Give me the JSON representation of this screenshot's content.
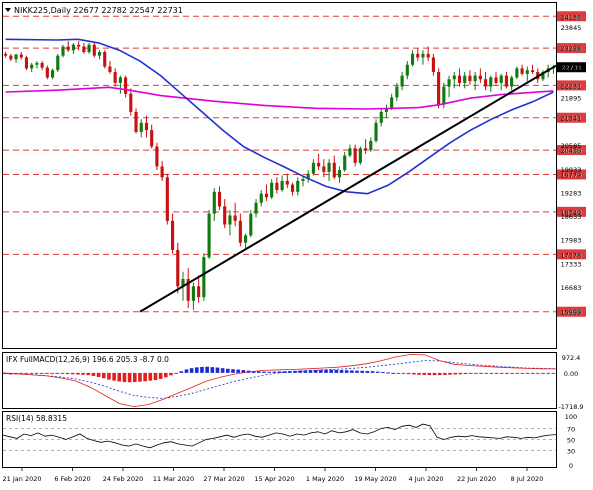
{
  "header": {
    "main_title": "NIKK225,Daily  22677 22782 22547 22731",
    "macd_title": "IFX FullMACD(12,26,9) 196.6 205.3 -8.7 0.0",
    "rsi_title": "RSI(14) 58.8315"
  },
  "colors": {
    "bull": "#107a10",
    "bear": "#c81010",
    "ma50": "#2233cc",
    "ma200": "#dd00dd",
    "level": "#e03a3a",
    "trend": "#000000",
    "macd_pos": "#1a2bd6",
    "macd_neg": "#e02020",
    "macd_line": "#e02020",
    "signal_line": "#1a2bd6",
    "rsi_line": "#000000"
  },
  "chart_data": [
    {
      "type": "candlestick",
      "title": "NIKK225,Daily  22677 22782 22547 22731",
      "ylim": [
        15000,
        24500
      ],
      "y_ticks": [
        "24135",
        "23845",
        "23258",
        "22731",
        "22231",
        "21895",
        "21341",
        "20585",
        "20450",
        "19933",
        "19779",
        "19283",
        "18749",
        "18633",
        "17983",
        "17578",
        "17333",
        "16683",
        "15999"
      ],
      "levels": [
        {
          "value": 24135,
          "label": "24135"
        },
        {
          "value": 23258,
          "label": "23258"
        },
        {
          "value": 22231,
          "label": "22231"
        },
        {
          "value": 21341,
          "label": "21341"
        },
        {
          "value": 20450,
          "label": "20450"
        },
        {
          "value": 19779,
          "label": "19779"
        },
        {
          "value": 18749,
          "label": "18749"
        },
        {
          "value": 17578,
          "label": "17578"
        },
        {
          "value": 15999,
          "label": "15999"
        }
      ],
      "current_price": {
        "value": 22731,
        "label": "22731"
      },
      "x_ticks": [
        "21 Jan 2020",
        "6 Feb 2020",
        "24 Feb 2020",
        "11 Mar 2020",
        "27 Mar 2020",
        "15 Apr 2020",
        "1 May 2020",
        "19 May 2020",
        "4 Jun 2020",
        "22 Jun 2020",
        "8 Jul 2020"
      ],
      "trendline": [
        {
          "x": 26,
          "y": 15999
        },
        {
          "x": 106,
          "y": 22731
        }
      ],
      "ma_50": [
        [
          0,
          23500
        ],
        [
          10,
          23480
        ],
        [
          14,
          23500
        ],
        [
          18,
          23400
        ],
        [
          22,
          23200
        ],
        [
          26,
          22900
        ],
        [
          30,
          22500
        ],
        [
          34,
          22000
        ],
        [
          38,
          21500
        ],
        [
          42,
          21000
        ],
        [
          46,
          20550
        ],
        [
          50,
          20250
        ],
        [
          54,
          19980
        ],
        [
          58,
          19700
        ],
        [
          62,
          19450
        ],
        [
          66,
          19300
        ],
        [
          70,
          19250
        ],
        [
          74,
          19480
        ],
        [
          78,
          19850
        ],
        [
          82,
          20250
        ],
        [
          86,
          20650
        ],
        [
          90,
          21000
        ],
        [
          94,
          21300
        ],
        [
          98,
          21560
        ],
        [
          102,
          21780
        ],
        [
          106,
          22050
        ]
      ],
      "ma_200": [
        [
          0,
          22050
        ],
        [
          10,
          22100
        ],
        [
          20,
          22180
        ],
        [
          24,
          22100
        ],
        [
          30,
          21950
        ],
        [
          40,
          21800
        ],
        [
          50,
          21680
        ],
        [
          60,
          21600
        ],
        [
          70,
          21580
        ],
        [
          80,
          21620
        ],
        [
          84,
          21700
        ],
        [
          90,
          21880
        ],
        [
          96,
          21980
        ],
        [
          106,
          22080
        ]
      ],
      "candles": [
        [
          23100,
          23150,
          23000,
          23050
        ],
        [
          23050,
          23100,
          22900,
          22950
        ],
        [
          22950,
          23100,
          22850,
          23080
        ],
        [
          23080,
          23150,
          22950,
          23000
        ],
        [
          23000,
          23050,
          22650,
          22700
        ],
        [
          22700,
          22850,
          22600,
          22800
        ],
        [
          22800,
          22900,
          22700,
          22850
        ],
        [
          22850,
          22900,
          22650,
          22720
        ],
        [
          22720,
          22780,
          22400,
          22450
        ],
        [
          22450,
          22700,
          22400,
          22650
        ],
        [
          22650,
          23100,
          22600,
          23050
        ],
        [
          23050,
          23350,
          23000,
          23300
        ],
        [
          23300,
          23450,
          23150,
          23200
        ],
        [
          23200,
          23400,
          23100,
          23350
        ],
        [
          23350,
          23450,
          23200,
          23300
        ],
        [
          23300,
          23400,
          23100,
          23150
        ],
        [
          23150,
          23400,
          23100,
          23350
        ],
        [
          23350,
          23400,
          23000,
          23050
        ],
        [
          23050,
          23200,
          22950,
          23150
        ],
        [
          23150,
          23200,
          22700,
          22750
        ],
        [
          22750,
          22900,
          22550,
          22600
        ],
        [
          22600,
          22700,
          22200,
          22300
        ],
        [
          22300,
          22500,
          22000,
          22450
        ],
        [
          22450,
          22500,
          21900,
          22000
        ],
        [
          22000,
          22150,
          21400,
          21500
        ],
        [
          21500,
          21600,
          20900,
          20950
        ],
        [
          20950,
          21300,
          20800,
          21200
        ],
        [
          21200,
          21400,
          20800,
          21000
        ],
        [
          21000,
          21150,
          20500,
          20550
        ],
        [
          20550,
          20650,
          19900,
          20000
        ],
        [
          20000,
          20150,
          19600,
          19700
        ],
        [
          19700,
          19800,
          18400,
          18500
        ],
        [
          18500,
          18700,
          17600,
          17700
        ],
        [
          17700,
          17900,
          16500,
          16700
        ],
        [
          16700,
          17100,
          16300,
          16900
        ],
        [
          16900,
          17200,
          16100,
          16300
        ],
        [
          16300,
          16800,
          16050,
          16700
        ],
        [
          16700,
          17000,
          16250,
          16400
        ],
        [
          16400,
          17600,
          16300,
          17500
        ],
        [
          17500,
          18800,
          17450,
          18700
        ],
        [
          18700,
          19400,
          18500,
          19300
        ],
        [
          19300,
          19450,
          18800,
          18900
        ],
        [
          18900,
          19100,
          18300,
          18400
        ],
        [
          18400,
          18800,
          18100,
          18650
        ],
        [
          18650,
          19000,
          18350,
          18500
        ],
        [
          18500,
          18700,
          17800,
          17900
        ],
        [
          17900,
          18150,
          17750,
          18100
        ],
        [
          18100,
          18800,
          18050,
          18700
        ],
        [
          18700,
          19100,
          18600,
          19000
        ],
        [
          19000,
          19350,
          18900,
          19250
        ],
        [
          19250,
          19500,
          19050,
          19150
        ],
        [
          19150,
          19650,
          19100,
          19550
        ],
        [
          19550,
          19700,
          19250,
          19350
        ],
        [
          19350,
          19750,
          19300,
          19600
        ],
        [
          19600,
          19800,
          19400,
          19500
        ],
        [
          19500,
          19550,
          19200,
          19300
        ],
        [
          19300,
          19700,
          19200,
          19600
        ],
        [
          19600,
          19750,
          19450,
          19650
        ],
        [
          19650,
          19900,
          19550,
          19800
        ],
        [
          19800,
          20200,
          19750,
          20100
        ],
        [
          20100,
          20350,
          19900,
          20000
        ],
        [
          20000,
          20200,
          19700,
          19850
        ],
        [
          19850,
          20200,
          19600,
          20100
        ],
        [
          20100,
          20300,
          19650,
          19700
        ],
        [
          19700,
          20000,
          19550,
          19900
        ],
        [
          19900,
          20400,
          19850,
          20300
        ],
        [
          20300,
          20600,
          20250,
          20500
        ],
        [
          20500,
          20600,
          20000,
          20100
        ],
        [
          20100,
          20550,
          20050,
          20500
        ],
        [
          20500,
          20750,
          20350,
          20450
        ],
        [
          20450,
          20800,
          20400,
          20700
        ],
        [
          20700,
          21300,
          20650,
          21200
        ],
        [
          21200,
          21600,
          21100,
          21500
        ],
        [
          21500,
          21700,
          21350,
          21600
        ],
        [
          21600,
          22000,
          21550,
          21900
        ],
        [
          21900,
          22300,
          21800,
          22200
        ],
        [
          22200,
          22600,
          22100,
          22500
        ],
        [
          22500,
          22900,
          22400,
          22800
        ],
        [
          22800,
          23200,
          22750,
          23100
        ],
        [
          23100,
          23250,
          22900,
          23000
        ],
        [
          23000,
          23200,
          22800,
          23100
        ],
        [
          23100,
          23300,
          22900,
          23000
        ],
        [
          23000,
          23100,
          22500,
          22600
        ],
        [
          22600,
          22700,
          21600,
          21700
        ],
        [
          21700,
          22300,
          21600,
          22200
        ],
        [
          22200,
          22500,
          21900,
          22400
        ],
        [
          22400,
          22600,
          22150,
          22500
        ],
        [
          22500,
          22700,
          22200,
          22300
        ],
        [
          22300,
          22600,
          22150,
          22500
        ],
        [
          22500,
          22650,
          22250,
          22350
        ],
        [
          22350,
          22600,
          22100,
          22500
        ],
        [
          22500,
          22700,
          22300,
          22400
        ],
        [
          22400,
          22600,
          22100,
          22200
        ],
        [
          22200,
          22500,
          22050,
          22450
        ],
        [
          22450,
          22600,
          22250,
          22300
        ],
        [
          22300,
          22550,
          22100,
          22500
        ],
        [
          22500,
          22600,
          22150,
          22200
        ],
        [
          22200,
          22500,
          22100,
          22450
        ],
        [
          22450,
          22750,
          22400,
          22700
        ],
        [
          22700,
          22800,
          22500,
          22550
        ],
        [
          22550,
          22750,
          22350,
          22650
        ],
        [
          22650,
          22800,
          22550,
          22600
        ],
        [
          22600,
          22700,
          22300,
          22400
        ],
        [
          22400,
          22650,
          22350,
          22600
        ],
        [
          22600,
          22800,
          22450,
          22700
        ],
        [
          22700,
          22800,
          22550,
          22731
        ]
      ]
    },
    {
      "type": "bar",
      "title": "IFX FullMACD(12,26,9) 196.6 205.3 -8.7 0.0",
      "ylim": [
        -1718.9,
        972.4
      ],
      "y_ticks": [
        "972.4",
        "0.00",
        "-1718.9"
      ],
      "histogram": [
        -60,
        -80,
        -70,
        -50,
        -40,
        -30,
        -20,
        -15,
        -10,
        -8,
        -20,
        -40,
        -60,
        -70,
        -80,
        -90,
        -110,
        -150,
        -200,
        -260,
        -330,
        -380,
        -420,
        -450,
        -460,
        -450,
        -430,
        -410,
        -380,
        -350,
        -300,
        -220,
        -120,
        -20,
        80,
        170,
        230,
        270,
        290,
        300,
        280,
        260,
        230,
        200,
        180,
        160,
        140,
        110,
        90,
        70,
        60,
        50,
        60,
        70,
        80,
        90,
        100,
        110,
        120,
        130,
        140,
        150,
        160,
        160,
        150,
        140,
        130,
        120,
        110,
        100,
        90,
        80,
        60,
        40,
        20,
        0,
        -20,
        -40,
        -60,
        -80,
        -90,
        -100,
        -110,
        -110,
        -110,
        -100,
        -90,
        -80,
        -70,
        -60,
        -50,
        -40,
        -30,
        -20,
        -15,
        -10,
        -8,
        -6,
        -5,
        -5,
        -6,
        -7,
        -8,
        -8,
        -8,
        -9,
        -8.7
      ],
      "macd_line": [
        0,
        -50,
        -100,
        -150,
        -250,
        -400,
        -700,
        -1100,
        -1500,
        -1650,
        -1550,
        -1300,
        -1000,
        -700,
        -400,
        -200,
        -50,
        60,
        120,
        150,
        170,
        200,
        240,
        280,
        350,
        450,
        600,
        780,
        900,
        880,
        600,
        420,
        360,
        320,
        280,
        250,
        220,
        200,
        196.6
      ],
      "signal_line": [
        -20,
        -50,
        -90,
        -140,
        -200,
        -300,
        -450,
        -650,
        -900,
        -1100,
        -1200,
        -1250,
        -1150,
        -1000,
        -800,
        -600,
        -400,
        -250,
        -100,
        0,
        60,
        110,
        150,
        180,
        220,
        280,
        350,
        430,
        520,
        600,
        580,
        500,
        430,
        370,
        320,
        280,
        240,
        220,
        205.3
      ]
    },
    {
      "type": "line",
      "title": "RSI(14) 58.8315",
      "ylim": [
        0,
        100
      ],
      "y_ticks": [
        "100",
        "70",
        "50",
        "30",
        "0"
      ],
      "values": [
        58,
        55,
        52,
        60,
        57,
        62,
        56,
        58,
        54,
        50,
        55,
        60,
        52,
        48,
        45,
        47,
        44,
        40,
        38,
        42,
        38,
        35,
        40,
        44,
        46,
        42,
        40,
        38,
        44,
        50,
        52,
        55,
        58,
        54,
        58,
        60,
        56,
        54,
        58,
        62,
        60,
        56,
        60,
        58,
        62,
        64,
        60,
        66,
        62,
        64,
        68,
        62,
        60,
        64,
        70,
        72,
        68,
        74,
        76,
        72,
        78,
        75,
        54,
        50,
        54,
        56,
        55,
        57,
        55,
        54,
        53,
        52,
        55,
        54,
        52,
        54,
        53,
        56,
        58,
        58.83
      ]
    }
  ]
}
